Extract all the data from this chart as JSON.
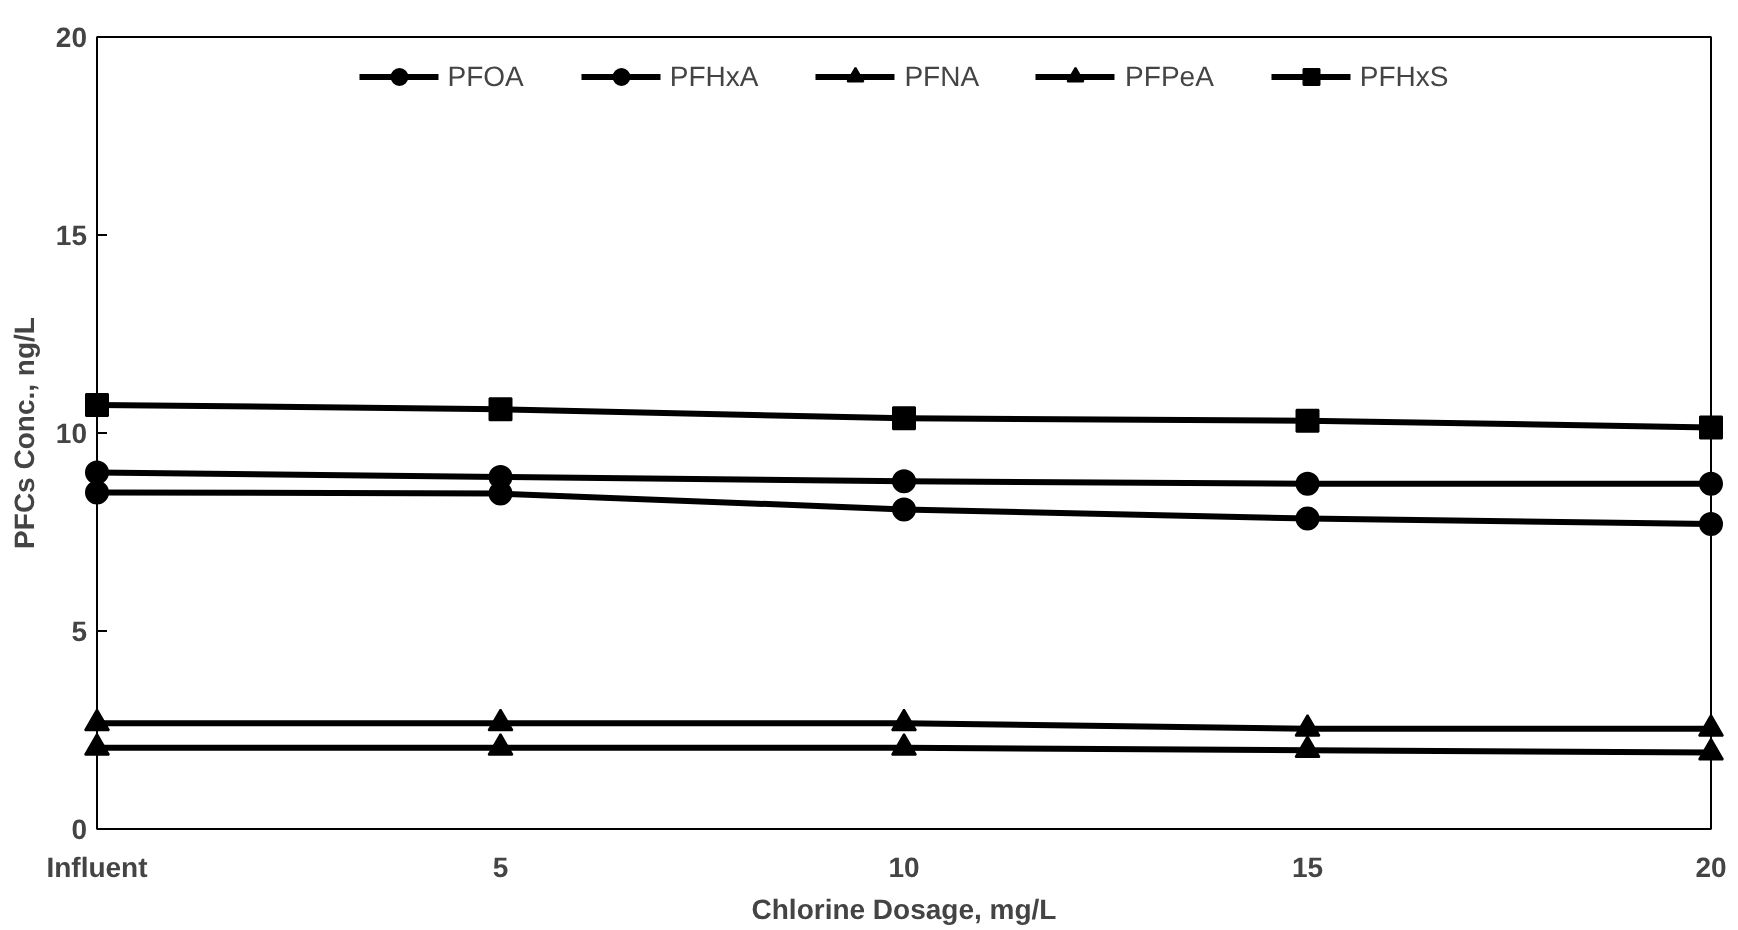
{
  "chart_data": {
    "type": "line",
    "xlabel": "Chlorine Dosage, mg/L",
    "ylabel": "PFCs Conc., ng/L",
    "categories": [
      "Influent",
      "5",
      "10",
      "15",
      "20"
    ],
    "ylim": [
      0,
      20
    ],
    "yticks": [
      0,
      5,
      10,
      15,
      20
    ],
    "grid": false,
    "legend": "top",
    "series": [
      {
        "name": "PFOA",
        "color": "#000000",
        "marker": "circle",
        "values": [
          8.5,
          8.47,
          8.07,
          7.84,
          7.7
        ]
      },
      {
        "name": "PFHxA",
        "color": "#000000",
        "marker": "circle",
        "values": [
          9.0,
          8.89,
          8.78,
          8.72,
          8.72
        ]
      },
      {
        "name": "PFNA",
        "color": "#000000",
        "marker": "triangle",
        "values": [
          2.67,
          2.67,
          2.67,
          2.53,
          2.53
        ]
      },
      {
        "name": "PFPeA",
        "color": "#000000",
        "marker": "triangle",
        "values": [
          2.05,
          2.05,
          2.05,
          1.99,
          1.93
        ]
      },
      {
        "name": "PFHxS",
        "color": "#000000",
        "marker": "square",
        "values": [
          10.71,
          10.6,
          10.37,
          10.31,
          10.14
        ]
      }
    ]
  }
}
